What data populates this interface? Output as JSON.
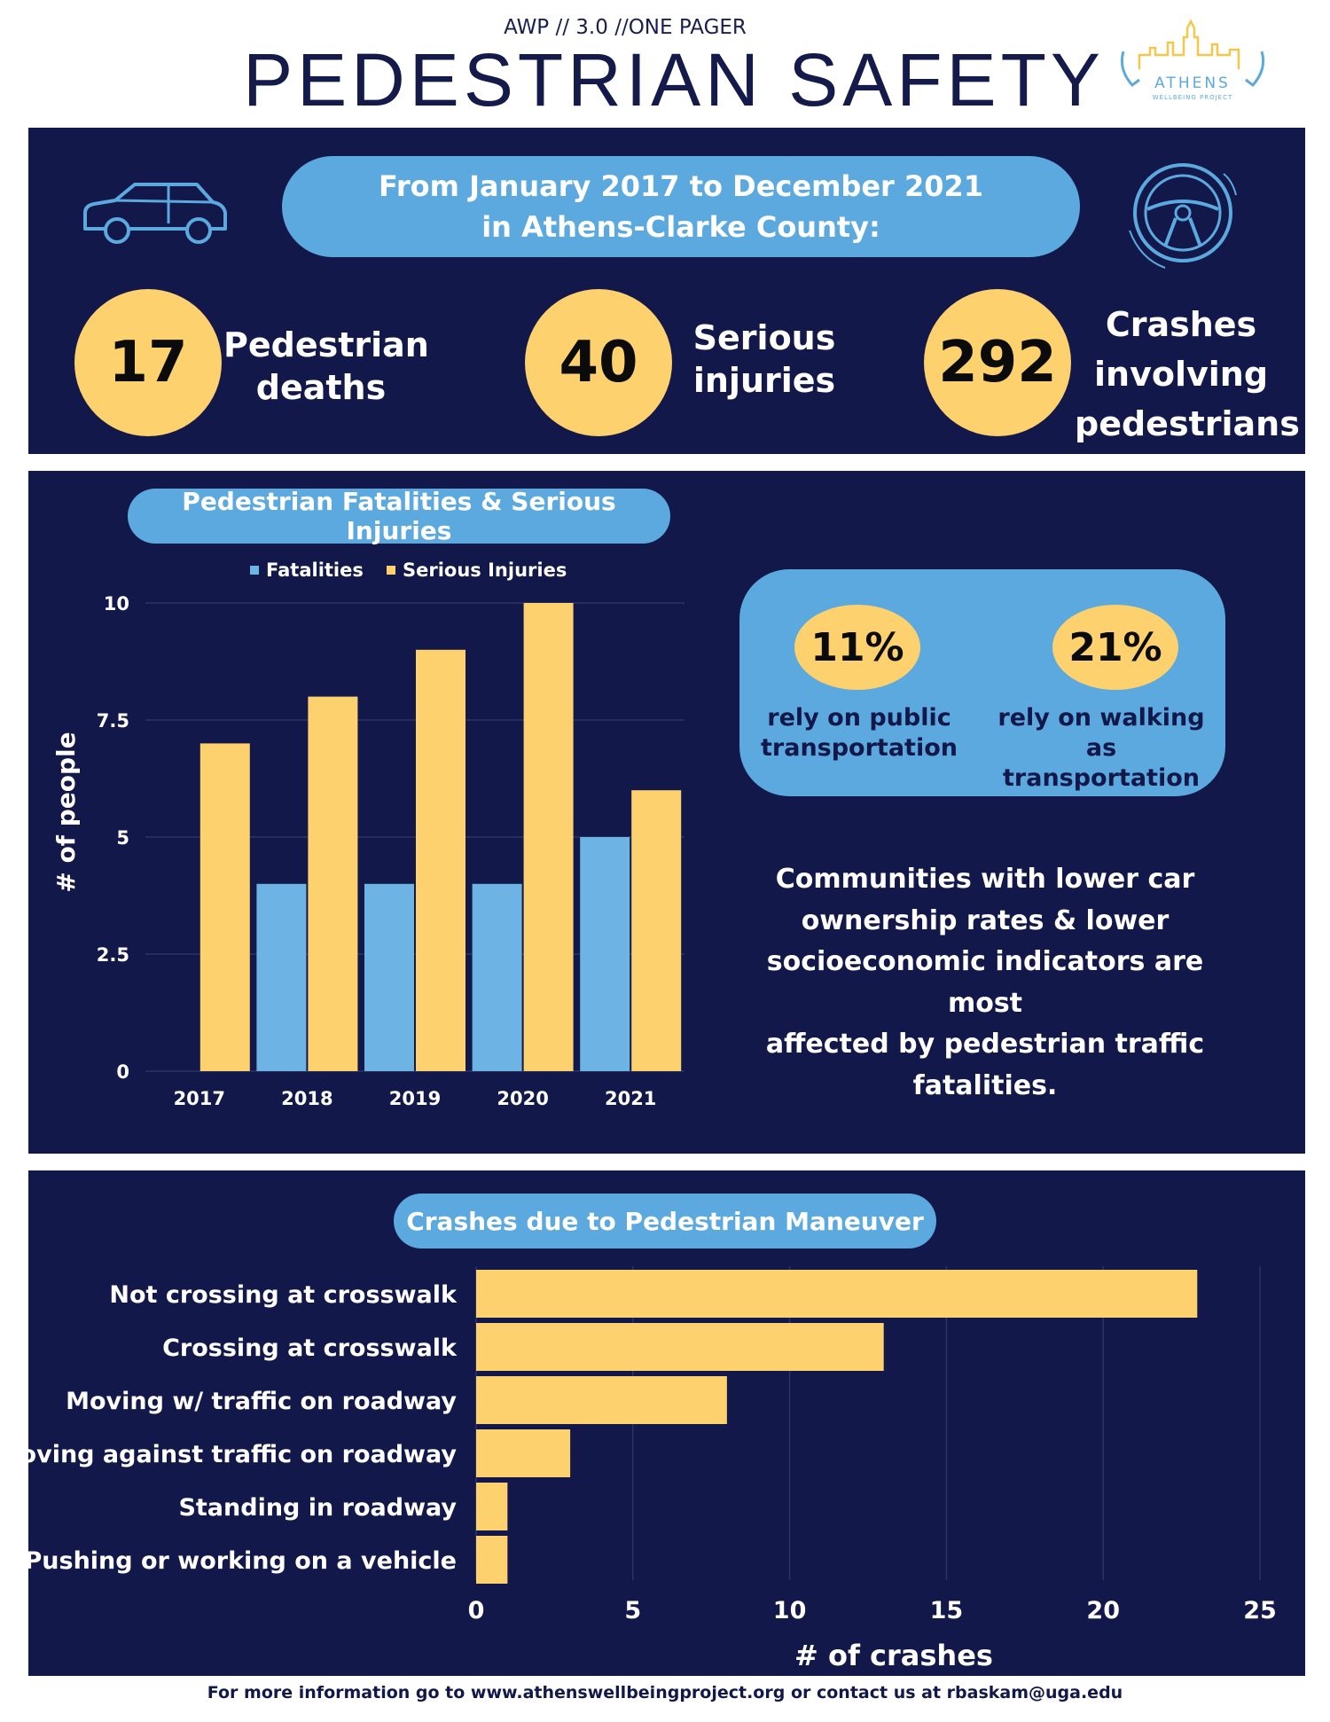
{
  "header": {
    "kicker": "AWP // 3.0 //ONE PAGER",
    "title": "PEDESTRIAN SAFETY",
    "logo_text": "ATHENS",
    "logo_subtext": "WELLBEING PROJECT"
  },
  "summary": {
    "period_line1": "From January 2017 to December 2021",
    "period_line2": "in Athens-Clarke County:",
    "stats": [
      {
        "value": "17",
        "label_line1": "Pedestrian",
        "label_line2": "deaths",
        "label_line3": ""
      },
      {
        "value": "40",
        "label_line1": "Serious",
        "label_line2": "injuries",
        "label_line3": ""
      },
      {
        "value": "292",
        "label_line1": "Crashes",
        "label_line2": "involving",
        "label_line3": "pedestrians"
      }
    ]
  },
  "transport": {
    "items": [
      {
        "value": "11%",
        "label_line1": "rely on public",
        "label_line2": "transportation"
      },
      {
        "value": "21%",
        "label_line1": "rely on walking as",
        "label_line2": "transportation"
      }
    ],
    "note_lines": [
      "Communities with lower car",
      "ownership rates & lower",
      "socioeconomic indicators are most",
      "affected by pedestrian traffic",
      "fatalities."
    ]
  },
  "footer": {
    "text": "For more information go to www.athenswellbeingproject.org or contact us at rbaskam@uga.edu"
  },
  "colors": {
    "navy": "#13184a",
    "blue": "#6db3e4",
    "yellow": "#fdd16d"
  },
  "chart_data": [
    {
      "type": "bar",
      "title": "Pedestrian Fatalities & Serious Injuries",
      "categories": [
        "2017",
        "2018",
        "2019",
        "2020",
        "2021"
      ],
      "series": [
        {
          "name": "Fatalities",
          "values": [
            0,
            4,
            4,
            4,
            5
          ]
        },
        {
          "name": "Serious Injuries",
          "values": [
            7,
            8,
            9,
            10,
            6
          ]
        }
      ],
      "yticks": [
        "0",
        "2.5",
        "5",
        "7.5",
        "10"
      ],
      "ylim": [
        0,
        10
      ],
      "ylabel": "# of people",
      "xlabel": "",
      "legend": "top",
      "grid": true
    },
    {
      "type": "bar",
      "orientation": "horizontal",
      "title": "Crashes due to Pedestrian Maneuver",
      "categories": [
        "Not crossing at crosswalk",
        "Crossing at crosswalk",
        "Moving w/ traffic on roadway",
        "Moving against traffic on roadway",
        "Standing in roadway",
        "Pushing or working on a vehicle"
      ],
      "values": [
        23,
        13,
        8,
        3,
        1,
        1
      ],
      "xticks": [
        "0",
        "5",
        "10",
        "15",
        "20",
        "25"
      ],
      "xlim": [
        0,
        25
      ],
      "xlabel": "# of crashes",
      "ylabel": "",
      "grid": true
    }
  ]
}
